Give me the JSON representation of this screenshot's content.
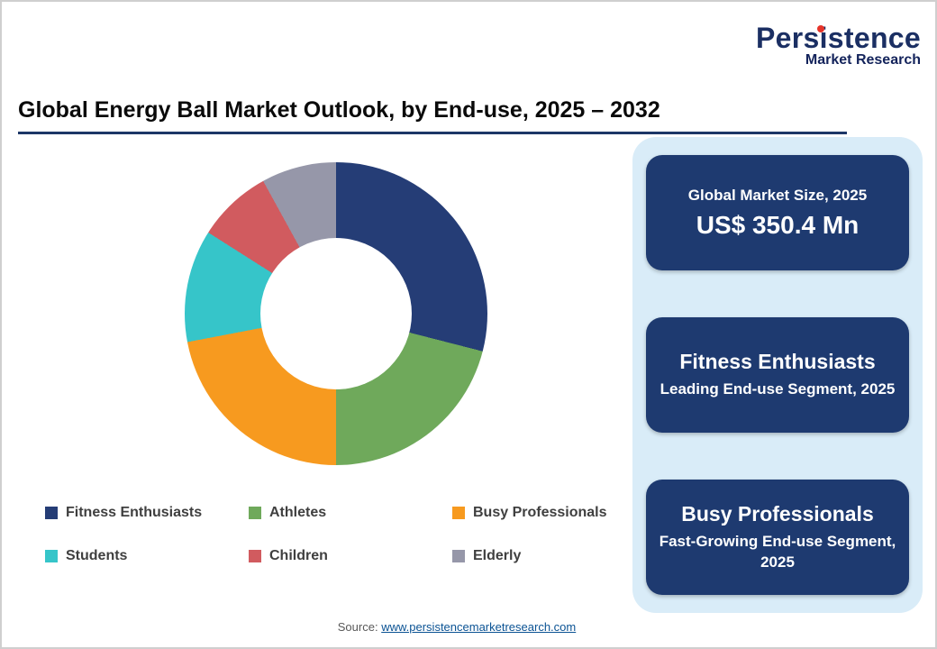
{
  "page": {
    "title": "Global Energy Ball Market Outlook, by End-use, 2025 – 2032",
    "source_label": "Source:",
    "source_link": "www.persistencemarketresearch.com"
  },
  "logo": {
    "brand": "Persistence",
    "subtitle": "Market Research"
  },
  "side_panel": {
    "cards": [
      {
        "line1": "Global Market Size, 2025",
        "line2": "US$ 350.4 Mn"
      },
      {
        "line1": "Fitness Enthusiasts",
        "line2": "Leading End-use Segment, 2025"
      },
      {
        "line1": "Busy Professionals",
        "line2": "Fast-Growing End-use Segment, 2025"
      }
    ]
  },
  "chart_data": {
    "type": "pie",
    "subtype": "donut",
    "title": "Global Energy Ball Market Outlook, by End-use, 2025 – 2032",
    "categories": [
      "Fitness Enthusiasts",
      "Athletes",
      "Busy Professionals",
      "Students",
      "Children",
      "Elderly"
    ],
    "values": [
      29,
      21,
      22,
      12,
      8,
      8
    ],
    "values_estimated": true,
    "unit": "percent",
    "colors": [
      "#253d76",
      "#6fa95b",
      "#f79a1f",
      "#36c5c9",
      "#d15b5f",
      "#9697a9"
    ],
    "legend_position": "bottom",
    "start_angle_deg": 0,
    "direction": "clockwise"
  },
  "colors": {
    "accent_navy": "#1c3667",
    "panel_light_blue": "#d9ecf8",
    "card_navy": "#1e3a70",
    "link_blue": "#0b5394",
    "logo_red": "#e63329"
  }
}
